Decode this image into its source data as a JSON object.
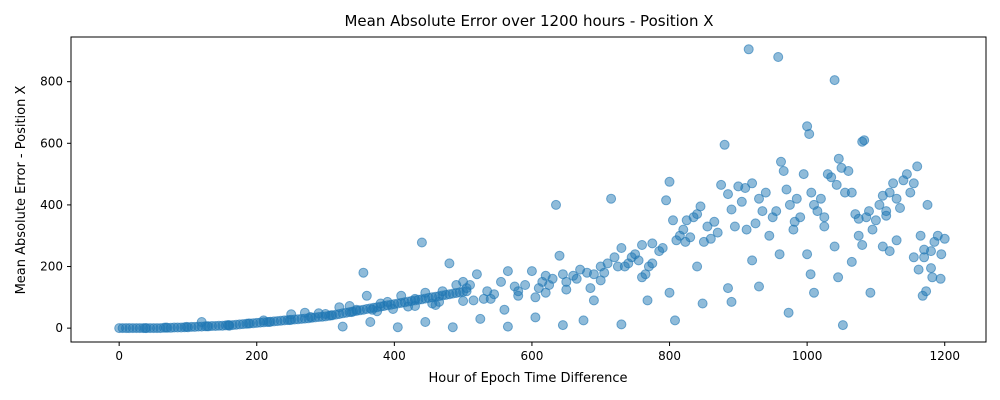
{
  "chart_data": {
    "type": "scatter",
    "title": "Mean Absolute Error over 1200 hours - Position X",
    "xlabel": "Hour of Epoch Time Difference",
    "ylabel": "Mean Absolute Error - Position X",
    "xlim": [
      -70,
      1260
    ],
    "ylim": [
      -45,
      945
    ],
    "xticks": [
      0,
      200,
      400,
      600,
      800,
      1000,
      1200
    ],
    "yticks": [
      0,
      200,
      400,
      600,
      800
    ],
    "grid": false,
    "legend": "none",
    "color": "#1f77b4",
    "points": [
      [
        0,
        0
      ],
      [
        5,
        0
      ],
      [
        10,
        0
      ],
      [
        15,
        0
      ],
      [
        20,
        0
      ],
      [
        25,
        0
      ],
      [
        30,
        0
      ],
      [
        35,
        0
      ],
      [
        40,
        0
      ],
      [
        45,
        0
      ],
      [
        50,
        0
      ],
      [
        55,
        0
      ],
      [
        60,
        0
      ],
      [
        65,
        1
      ],
      [
        70,
        1
      ],
      [
        75,
        1
      ],
      [
        80,
        2
      ],
      [
        85,
        2
      ],
      [
        90,
        2
      ],
      [
        95,
        3
      ],
      [
        100,
        3
      ],
      [
        105,
        4
      ],
      [
        110,
        4
      ],
      [
        115,
        5
      ],
      [
        120,
        5
      ],
      [
        125,
        6
      ],
      [
        130,
        6
      ],
      [
        135,
        7
      ],
      [
        140,
        7
      ],
      [
        145,
        8
      ],
      [
        150,
        8
      ],
      [
        155,
        9
      ],
      [
        160,
        10
      ],
      [
        165,
        10
      ],
      [
        170,
        11
      ],
      [
        175,
        12
      ],
      [
        180,
        13
      ],
      [
        185,
        14
      ],
      [
        190,
        15
      ],
      [
        195,
        16
      ],
      [
        200,
        17
      ],
      [
        205,
        18
      ],
      [
        210,
        19
      ],
      [
        215,
        20
      ],
      [
        220,
        21
      ],
      [
        225,
        22
      ],
      [
        230,
        23
      ],
      [
        235,
        24
      ],
      [
        240,
        25
      ],
      [
        245,
        26
      ],
      [
        250,
        27
      ],
      [
        255,
        28
      ],
      [
        260,
        29
      ],
      [
        265,
        30
      ],
      [
        270,
        31
      ],
      [
        275,
        32
      ],
      [
        280,
        34
      ],
      [
        285,
        35
      ],
      [
        290,
        36
      ],
      [
        295,
        37
      ],
      [
        300,
        38
      ],
      [
        305,
        40
      ],
      [
        310,
        42
      ],
      [
        315,
        44
      ],
      [
        320,
        46
      ],
      [
        325,
        48
      ],
      [
        330,
        50
      ],
      [
        335,
        52
      ],
      [
        340,
        54
      ],
      [
        345,
        56
      ],
      [
        350,
        58
      ],
      [
        355,
        60
      ],
      [
        360,
        62
      ],
      [
        365,
        64
      ],
      [
        370,
        66
      ],
      [
        375,
        68
      ],
      [
        380,
        70
      ],
      [
        385,
        72
      ],
      [
        390,
        74
      ],
      [
        395,
        76
      ],
      [
        400,
        78
      ],
      [
        405,
        80
      ],
      [
        410,
        82
      ],
      [
        415,
        84
      ],
      [
        420,
        86
      ],
      [
        425,
        88
      ],
      [
        430,
        90
      ],
      [
        435,
        92
      ],
      [
        440,
        94
      ],
      [
        445,
        96
      ],
      [
        450,
        98
      ],
      [
        455,
        100
      ],
      [
        460,
        102
      ],
      [
        465,
        104
      ],
      [
        470,
        106
      ],
      [
        475,
        108
      ],
      [
        480,
        110
      ],
      [
        485,
        112
      ],
      [
        490,
        114
      ],
      [
        495,
        116
      ],
      [
        500,
        118
      ],
      [
        505,
        120
      ],
      [
        120,
        20
      ],
      [
        160,
        8
      ],
      [
        210,
        25
      ],
      [
        250,
        45
      ],
      [
        270,
        50
      ],
      [
        290,
        48
      ],
      [
        300,
        46
      ],
      [
        320,
        68
      ],
      [
        335,
        72
      ],
      [
        345,
        60
      ],
      [
        355,
        180
      ],
      [
        360,
        105
      ],
      [
        375,
        55
      ],
      [
        380,
        80
      ],
      [
        390,
        85
      ],
      [
        410,
        105
      ],
      [
        420,
        70
      ],
      [
        430,
        95
      ],
      [
        440,
        278
      ],
      [
        445,
        115
      ],
      [
        455,
        80
      ],
      [
        460,
        75
      ],
      [
        470,
        120
      ],
      [
        480,
        210
      ],
      [
        490,
        140
      ],
      [
        500,
        150
      ],
      [
        505,
        130
      ],
      [
        510,
        140
      ],
      [
        515,
        90
      ],
      [
        520,
        175
      ],
      [
        530,
        95
      ],
      [
        535,
        120
      ],
      [
        545,
        110
      ],
      [
        555,
        150
      ],
      [
        560,
        60
      ],
      [
        565,
        185
      ],
      [
        575,
        135
      ],
      [
        580,
        120
      ],
      [
        590,
        140
      ],
      [
        600,
        185
      ],
      [
        605,
        100
      ],
      [
        610,
        130
      ],
      [
        615,
        150
      ],
      [
        620,
        170
      ],
      [
        625,
        140
      ],
      [
        630,
        160
      ],
      [
        635,
        400
      ],
      [
        640,
        235
      ],
      [
        645,
        175
      ],
      [
        650,
        150
      ],
      [
        660,
        170
      ],
      [
        665,
        160
      ],
      [
        670,
        190
      ],
      [
        680,
        180
      ],
      [
        685,
        130
      ],
      [
        690,
        175
      ],
      [
        700,
        200
      ],
      [
        705,
        180
      ],
      [
        710,
        210
      ],
      [
        715,
        420
      ],
      [
        720,
        230
      ],
      [
        725,
        200
      ],
      [
        730,
        260
      ],
      [
        740,
        210
      ],
      [
        745,
        230
      ],
      [
        750,
        240
      ],
      [
        755,
        220
      ],
      [
        760,
        270
      ],
      [
        765,
        175
      ],
      [
        770,
        200
      ],
      [
        775,
        275
      ],
      [
        785,
        250
      ],
      [
        790,
        260
      ],
      [
        795,
        415
      ],
      [
        800,
        475
      ],
      [
        805,
        350
      ],
      [
        810,
        285
      ],
      [
        815,
        300
      ],
      [
        820,
        320
      ],
      [
        825,
        350
      ],
      [
        830,
        295
      ],
      [
        835,
        360
      ],
      [
        840,
        370
      ],
      [
        845,
        395
      ],
      [
        850,
        280
      ],
      [
        860,
        290
      ],
      [
        865,
        345
      ],
      [
        870,
        310
      ],
      [
        875,
        465
      ],
      [
        880,
        595
      ],
      [
        885,
        435
      ],
      [
        890,
        385
      ],
      [
        895,
        330
      ],
      [
        900,
        460
      ],
      [
        905,
        410
      ],
      [
        910,
        455
      ],
      [
        915,
        905
      ],
      [
        920,
        470
      ],
      [
        925,
        340
      ],
      [
        930,
        420
      ],
      [
        935,
        380
      ],
      [
        940,
        440
      ],
      [
        945,
        300
      ],
      [
        950,
        360
      ],
      [
        955,
        380
      ],
      [
        958,
        880
      ],
      [
        962,
        540
      ],
      [
        966,
        510
      ],
      [
        970,
        450
      ],
      [
        975,
        400
      ],
      [
        980,
        320
      ],
      [
        985,
        420
      ],
      [
        990,
        360
      ],
      [
        995,
        500
      ],
      [
        1000,
        655
      ],
      [
        1003,
        630
      ],
      [
        1006,
        440
      ],
      [
        1010,
        400
      ],
      [
        1015,
        380
      ],
      [
        1020,
        420
      ],
      [
        1025,
        360
      ],
      [
        1030,
        500
      ],
      [
        1035,
        490
      ],
      [
        1040,
        805
      ],
      [
        1043,
        465
      ],
      [
        1046,
        550
      ],
      [
        1050,
        520
      ],
      [
        1055,
        440
      ],
      [
        1060,
        510
      ],
      [
        1065,
        440
      ],
      [
        1070,
        370
      ],
      [
        1075,
        300
      ],
      [
        1080,
        605
      ],
      [
        1083,
        610
      ],
      [
        1086,
        360
      ],
      [
        1090,
        380
      ],
      [
        1095,
        320
      ],
      [
        1100,
        350
      ],
      [
        1105,
        400
      ],
      [
        1110,
        430
      ],
      [
        1115,
        380
      ],
      [
        1120,
        440
      ],
      [
        1125,
        470
      ],
      [
        1130,
        420
      ],
      [
        1135,
        390
      ],
      [
        1140,
        480
      ],
      [
        1145,
        500
      ],
      [
        1150,
        440
      ],
      [
        1155,
        470
      ],
      [
        1160,
        525
      ],
      [
        1165,
        300
      ],
      [
        1170,
        230
      ],
      [
        1175,
        400
      ],
      [
        1180,
        250
      ],
      [
        1185,
        280
      ],
      [
        1190,
        300
      ],
      [
        1195,
        240
      ],
      [
        1200,
        290
      ],
      [
        325,
        5
      ],
      [
        365,
        20
      ],
      [
        405,
        3
      ],
      [
        445,
        20
      ],
      [
        485,
        3
      ],
      [
        525,
        30
      ],
      [
        565,
        5
      ],
      [
        605,
        35
      ],
      [
        645,
        10
      ],
      [
        675,
        25
      ],
      [
        690,
        90
      ],
      [
        730,
        12
      ],
      [
        768,
        90
      ],
      [
        808,
        25
      ],
      [
        848,
        80
      ],
      [
        890,
        85
      ],
      [
        930,
        135
      ],
      [
        973,
        50
      ],
      [
        1010,
        115
      ],
      [
        1052,
        10
      ],
      [
        1092,
        115
      ],
      [
        1168,
        105
      ],
      [
        1173,
        120
      ],
      [
        1194,
        160
      ],
      [
        1182,
        165
      ],
      [
        1162,
        190
      ],
      [
        700,
        155
      ],
      [
        760,
        165
      ],
      [
        800,
        115
      ],
      [
        840,
        200
      ],
      [
        885,
        130
      ],
      [
        920,
        220
      ],
      [
        960,
        240
      ],
      [
        1000,
        240
      ],
      [
        1040,
        265
      ],
      [
        1080,
        270
      ],
      [
        1120,
        250
      ],
      [
        1155,
        230
      ],
      [
        1005,
        175
      ],
      [
        1045,
        165
      ],
      [
        1065,
        215
      ],
      [
        1110,
        265
      ],
      [
        1130,
        285
      ],
      [
        1180,
        195
      ],
      [
        982,
        345
      ],
      [
        1025,
        330
      ],
      [
        1075,
        355
      ],
      [
        1115,
        365
      ],
      [
        1170,
        255
      ],
      [
        912,
        320
      ],
      [
        855,
        330
      ],
      [
        823,
        280
      ],
      [
        775,
        210
      ],
      [
        735,
        200
      ],
      [
        650,
        125
      ],
      [
        620,
        115
      ],
      [
        580,
        105
      ],
      [
        540,
        95
      ],
      [
        500,
        88
      ],
      [
        465,
        85
      ],
      [
        430,
        72
      ],
      [
        398,
        62
      ],
      [
        368,
        60
      ],
      [
        338,
        52
      ],
      [
        308,
        42
      ],
      [
        278,
        36
      ],
      [
        248,
        26
      ],
      [
        218,
        20
      ],
      [
        188,
        15
      ],
      [
        158,
        10
      ],
      [
        128,
        6
      ],
      [
        98,
        4
      ],
      [
        68,
        2
      ],
      [
        38,
        0
      ]
    ]
  }
}
